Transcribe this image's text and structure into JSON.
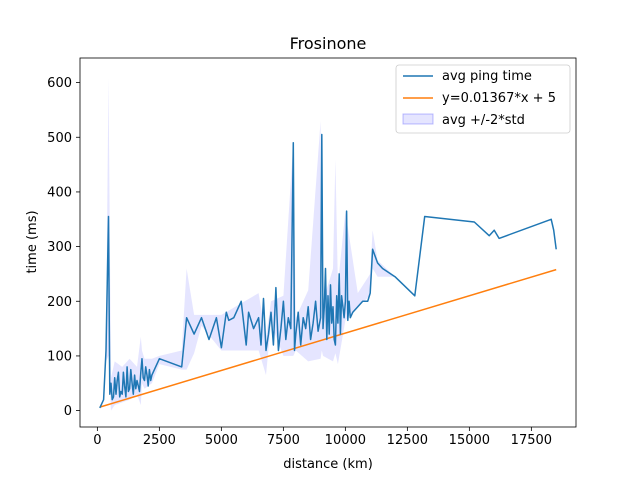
{
  "chart_data": {
    "type": "line",
    "title": "Frosinone",
    "xlabel": "distance (km)",
    "ylabel": "time (ms)",
    "xlim": [
      -700,
      19300
    ],
    "ylim": [
      -30,
      645
    ],
    "xticks": [
      0,
      2500,
      5000,
      7500,
      10000,
      12500,
      15000,
      17500
    ],
    "yticks": [
      0,
      100,
      200,
      300,
      400,
      500,
      600
    ],
    "xtick_labels": [
      "0",
      "2500",
      "5000",
      "7500",
      "10000",
      "12500",
      "15000",
      "17500"
    ],
    "ytick_labels": [
      "0",
      "100",
      "200",
      "300",
      "400",
      "500",
      "600"
    ],
    "grid": false,
    "legend_position": "top-right",
    "legend": [
      "avg ping time",
      "y=0.01367*x + 5",
      "avg +/-2*std"
    ],
    "series": [
      {
        "name": "avg ping time",
        "color": "#1f77b4",
        "x": [
          100,
          250,
          350,
          450,
          500,
          550,
          600,
          650,
          700,
          750,
          800,
          850,
          900,
          950,
          1000,
          1050,
          1100,
          1150,
          1200,
          1250,
          1300,
          1350,
          1400,
          1450,
          1500,
          1550,
          1600,
          1650,
          1700,
          1750,
          1800,
          1850,
          1900,
          1950,
          2000,
          2050,
          2100,
          2150,
          2200,
          2500,
          3400,
          3600,
          3900,
          4200,
          4500,
          4800,
          5000,
          5200,
          5300,
          5500,
          5800,
          6000,
          6100,
          6300,
          6500,
          6600,
          6700,
          6800,
          6900,
          7000,
          7100,
          7200,
          7300,
          7400,
          7500,
          7600,
          7700,
          7800,
          7900,
          7950,
          8000,
          8100,
          8200,
          8300,
          8400,
          8500,
          8600,
          8700,
          8800,
          8900,
          9000,
          9050,
          9100,
          9150,
          9200,
          9250,
          9300,
          9350,
          9400,
          9450,
          9500,
          9550,
          9600,
          9650,
          9700,
          9750,
          9800,
          9850,
          9900,
          9950,
          10000,
          10050,
          10100,
          10150,
          10200,
          10300,
          10500,
          10700,
          10900,
          11000,
          11100,
          11300,
          11500,
          12000,
          12800,
          13200,
          15200,
          15800,
          16000,
          16200,
          18300,
          18400,
          18500
        ],
        "y": [
          5,
          20,
          110,
          355,
          30,
          50,
          20,
          25,
          60,
          30,
          55,
          70,
          25,
          35,
          30,
          70,
          45,
          25,
          80,
          35,
          40,
          75,
          50,
          30,
          65,
          40,
          55,
          45,
          35,
          70,
          95,
          60,
          55,
          80,
          65,
          45,
          75,
          55,
          65,
          95,
          80,
          170,
          140,
          170,
          130,
          170,
          115,
          180,
          165,
          170,
          200,
          120,
          180,
          150,
          170,
          120,
          205,
          110,
          140,
          180,
          120,
          225,
          110,
          150,
          200,
          130,
          170,
          150,
          490,
          110,
          140,
          180,
          120,
          170,
          150,
          190,
          130,
          160,
          200,
          145,
          170,
          505,
          150,
          190,
          260,
          130,
          210,
          140,
          230,
          160,
          190,
          130,
          120,
          210,
          160,
          250,
          140,
          210,
          190,
          170,
          200,
          365,
          165,
          200,
          170,
          180,
          190,
          200,
          200,
          215,
          295,
          270,
          260,
          245,
          210,
          355,
          345,
          320,
          330,
          315,
          350,
          330,
          295
        ]
      },
      {
        "name": "y=0.01367*x + 5",
        "color": "#ff7f0e",
        "x": [
          100,
          18500
        ],
        "y": [
          6.4,
          257.9
        ]
      }
    ],
    "band": {
      "name": "avg +/-2*std",
      "color": "#0000ff",
      "opacity": 0.1,
      "x": [
        100,
        250,
        350,
        450,
        550,
        700,
        1000,
        1300,
        1600,
        1750,
        1800,
        1900,
        2200,
        2500,
        3400,
        3600,
        3900,
        4200,
        5000,
        6500,
        6800,
        7000,
        7500,
        7900,
        8000,
        8500,
        9000,
        9050,
        9100,
        9500,
        9600,
        9700,
        10000,
        10500,
        11000,
        11100,
        11300,
        12000,
        12800,
        13200,
        15200,
        16200,
        18300,
        18500
      ],
      "upper": [
        5,
        20,
        130,
        610,
        60,
        90,
        80,
        95,
        80,
        135,
        110,
        95,
        95,
        100,
        110,
        260,
        175,
        175,
        175,
        215,
        135,
        200,
        210,
        490,
        170,
        220,
        530,
        200,
        200,
        260,
        460,
        230,
        365,
        215,
        250,
        330,
        275,
        245,
        210,
        355,
        345,
        320,
        350,
        295
      ],
      "lower": [
        5,
        20,
        90,
        100,
        0,
        10,
        15,
        20,
        30,
        10,
        50,
        40,
        50,
        85,
        75,
        75,
        105,
        155,
        110,
        110,
        65,
        160,
        100,
        100,
        110,
        90,
        95,
        110,
        100,
        90,
        105,
        85,
        165,
        190,
        210,
        260,
        245,
        245,
        210,
        355,
        345,
        320,
        350,
        295
      ]
    }
  }
}
